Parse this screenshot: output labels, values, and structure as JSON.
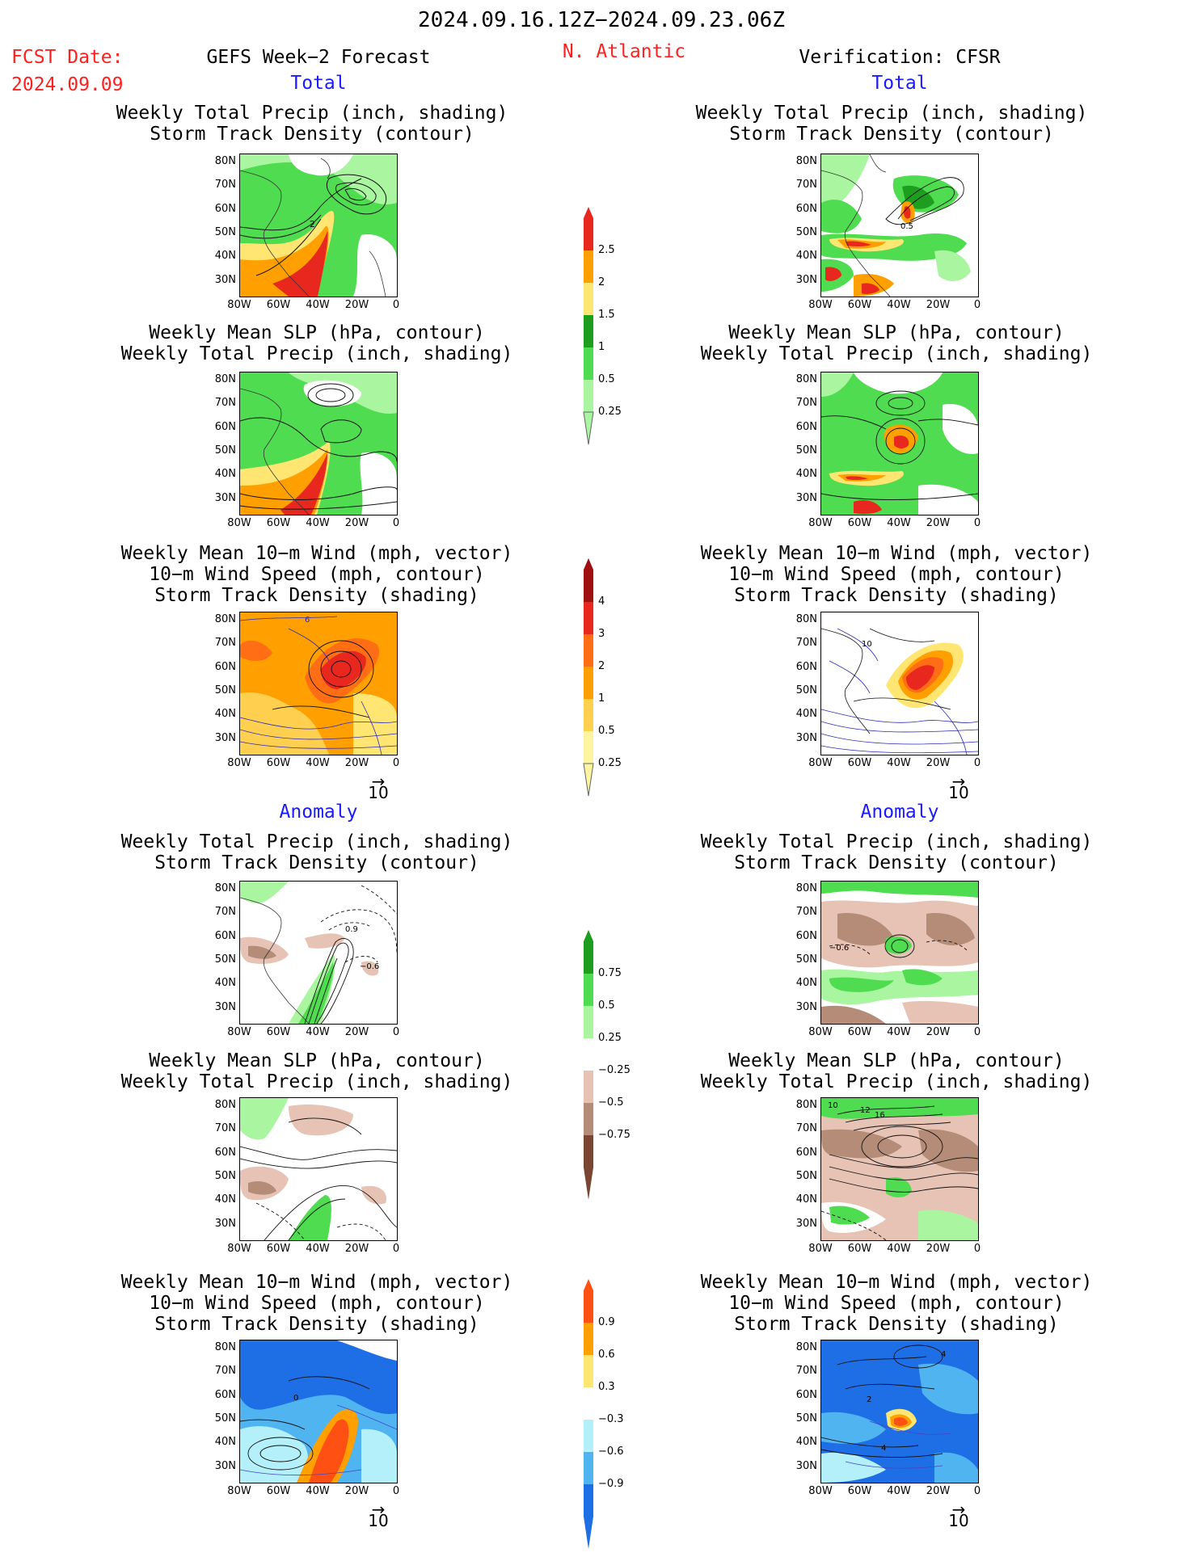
{
  "header": {
    "date_range": "2024.09.16.12Z−2024.09.23.06Z",
    "fcst_label": "FCST Date:",
    "fcst_date": "2024.09.09",
    "forecast_title": "GEFS Week−2 Forecast",
    "region": "N. Atlantic",
    "verification": "Verification: CFSR"
  },
  "sections": {
    "total": "Total",
    "anomaly": "Anomaly"
  },
  "titles": {
    "precip_track": [
      "Weekly Total Precip (inch, shading)",
      "Storm Track Density (contour)"
    ],
    "slp_precip": [
      "Weekly Mean SLP (hPa, contour)",
      "Weekly Total Precip (inch, shading)"
    ],
    "wind": [
      "Weekly Mean 10−m Wind (mph, vector)",
      "10−m Wind Speed (mph, contour)",
      "Storm Track Density (shading)"
    ]
  },
  "axes": {
    "lat_labels": [
      "80N",
      "70N",
      "60N",
      "50N",
      "40N",
      "30N"
    ],
    "lon_labels": [
      "80W",
      "60W",
      "40W",
      "20W",
      "0"
    ]
  },
  "vector_ref": "10",
  "contour_labels": {
    "fc_precip_total": "2",
    "obs_precip_total": "0.5",
    "fc_wind_total": "6",
    "obs_wind_total": "10",
    "fc_precip_anom_a": "0.9",
    "fc_precip_anom_b": "−0.6",
    "obs_precip_anom": "−0.6",
    "obs_slp_anom_a": "10",
    "obs_slp_anom_b": "12",
    "obs_slp_anom_c": "16",
    "fc_wind_anom": "0",
    "obs_wind_anom_a": "2",
    "obs_wind_anom_b": "4",
    "obs_wind_anom_c": "4"
  },
  "colorbars": {
    "precip_total": {
      "labels": [
        "2.5",
        "2",
        "1.5",
        "1",
        "0.5",
        "0.25"
      ],
      "colors": [
        "#e8281e",
        "#ffa000",
        "#ffe673",
        "#1e9e1e",
        "#50dc50",
        "#aaf5a0"
      ]
    },
    "track_total": {
      "labels": [
        "4",
        "3",
        "2",
        "1",
        "0.5",
        "0.25"
      ],
      "colors": [
        "#a01010",
        "#e8281e",
        "#ff6e14",
        "#ffa000",
        "#ffd050",
        "#fff5a0"
      ]
    },
    "precip_anom": {
      "labels": [
        "0.75",
        "0.5",
        "0.25",
        "−0.25",
        "−0.5",
        "−0.75"
      ],
      "colors": [
        "#1e9e1e",
        "#50dc50",
        "#aaf5a0",
        "#ffffff",
        "#e6c3b4",
        "#b48c78",
        "#784632"
      ]
    },
    "track_anom": {
      "labels": [
        "0.9",
        "0.6",
        "0.3",
        "−0.3",
        "−0.6",
        "−0.9"
      ],
      "colors": [
        "#ff5014",
        "#ffa000",
        "#ffe673",
        "#ffffff",
        "#b4f0fa",
        "#50b4f0",
        "#1e6ee6"
      ]
    }
  }
}
